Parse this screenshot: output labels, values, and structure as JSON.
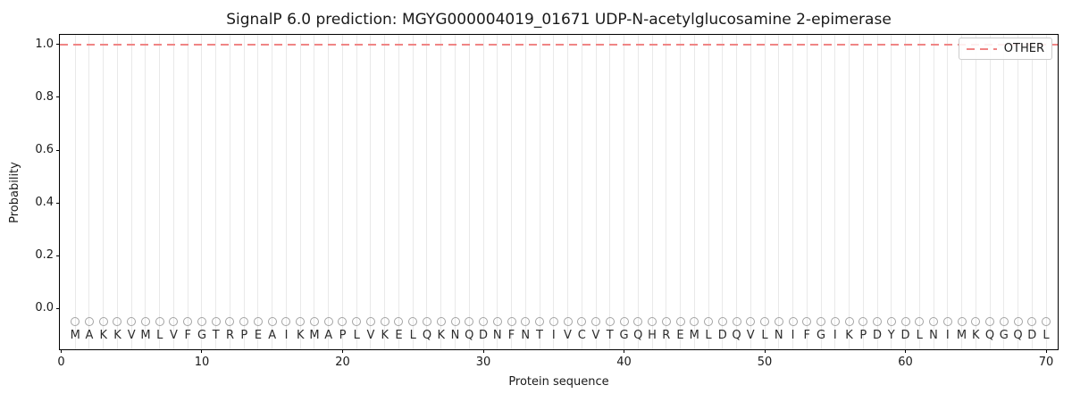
{
  "chart_data": {
    "type": "line",
    "title": "SignalP 6.0 prediction: MGYG000004019_01671 UDP-N-acetylglucosamine 2-epimerase",
    "xlabel": "Protein sequence",
    "ylabel": "Probability",
    "x_ticks": [
      0,
      10,
      20,
      30,
      40,
      50,
      60,
      70
    ],
    "y_ticks": [
      0.0,
      0.2,
      0.4,
      0.6,
      0.8,
      1.0
    ],
    "xlim": [
      -0.095,
      70.952
    ],
    "ylim": [
      -0.162,
      1.037
    ],
    "grid": "light vertical gridline at each residue position",
    "legend_position": "upper right",
    "series": [
      {
        "name": "OTHER",
        "line_style": "dashed",
        "color": "#f08585",
        "y_constant": 1.0,
        "x_range": [
          0,
          70.952
        ],
        "note": "flat dashed probability line at 1.0 across entire sequence"
      }
    ],
    "sequence": {
      "residues": "MAKKVMLVFGTRPEAIKMAPLVKELQKNQDNFNTIVCVTGQHREMLDQVLNIFGIKPDYDLNIMKQGQDL",
      "length": 70,
      "marker": "open-circle",
      "marker_y": -0.05,
      "letter_y": -0.104
    }
  },
  "colors": {
    "background": "#ffffff",
    "other_line": "#f08585",
    "gridline": "#e9e9e9",
    "spine": "#000000",
    "marker_stroke": "#a3a3a3",
    "letter_text": "#2b2b2b",
    "axis_text": "#1a1a1a",
    "legend_border": "#cccccc"
  },
  "legend": {
    "entries": [
      {
        "label": "OTHER",
        "swatch": "red-dashed-line"
      }
    ]
  }
}
